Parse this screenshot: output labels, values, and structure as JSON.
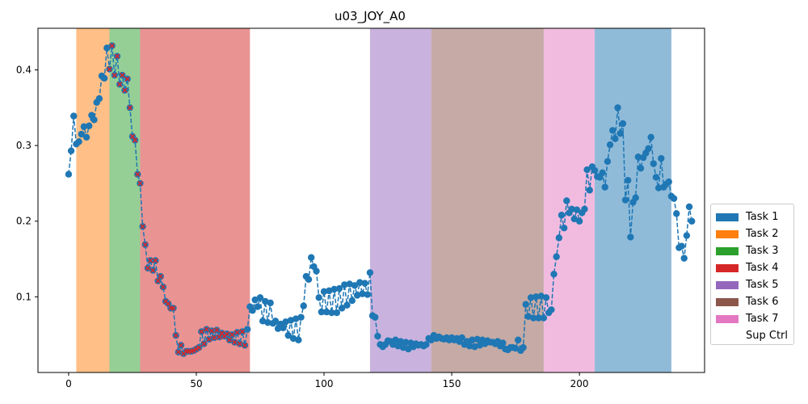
{
  "chart_data": {
    "type": "line",
    "title": "u03_JOY_A0",
    "xlabel": "",
    "ylabel": "",
    "xlim": [
      -12,
      249
    ],
    "ylim": [
      0.0,
      0.455
    ],
    "x_ticks": [
      0,
      50,
      100,
      150,
      200
    ],
    "y_ticks": [
      0.1,
      0.2,
      0.3,
      0.4
    ],
    "x_tick_labels": [
      "0",
      "50",
      "100",
      "150",
      "200"
    ],
    "y_tick_labels": [
      "0.1",
      "0.2",
      "0.3",
      "0.4"
    ],
    "grid": false,
    "legend_position": "outside right, lower",
    "line_style": "dashed with circle markers",
    "line_color": "#1f77b4",
    "task_spans": [
      {
        "task": "Task 2",
        "start": 3,
        "end": 16,
        "color": "#ff7f0e"
      },
      {
        "task": "Task 3",
        "start": 16,
        "end": 28,
        "color": "#2ca02c"
      },
      {
        "task": "Task 4",
        "start": 28,
        "end": 71,
        "color": "#d62728"
      },
      {
        "task": "Task 5",
        "start": 118,
        "end": 142,
        "color": "#9467bd"
      },
      {
        "task": "Task 6",
        "start": 142,
        "end": 186,
        "color": "#8c564b"
      },
      {
        "task": "Task 7",
        "start": 186,
        "end": 206,
        "color": "#e377c2"
      },
      {
        "task": "Task 1",
        "start": 206,
        "end": 236,
        "color": "#1f77b4"
      }
    ],
    "series": [
      {
        "values": [
          0.262,
          0.293,
          0.339,
          0.302,
          0.305,
          0.315,
          0.325,
          0.311,
          0.326,
          0.34,
          0.334,
          0.357,
          0.362,
          0.392,
          0.389,
          0.429,
          0.401,
          0.432,
          0.393,
          0.418,
          0.381,
          0.393,
          0.373,
          0.388,
          0.35,
          0.312,
          0.307,
          0.262,
          0.25,
          0.193,
          0.169,
          0.138,
          0.148,
          0.135,
          0.148,
          0.121,
          0.127,
          0.113,
          0.094,
          0.091,
          0.085,
          0.085,
          0.049,
          0.027,
          0.036,
          0.025,
          0.028,
          0.028,
          0.028,
          0.029,
          0.031,
          0.033,
          0.054,
          0.038,
          0.057,
          0.044,
          0.055,
          0.046,
          0.056,
          0.047,
          0.052,
          0.048,
          0.051,
          0.043,
          0.05,
          0.04,
          0.053,
          0.038,
          0.054,
          0.036,
          0.057,
          0.087,
          0.082,
          0.096,
          0.087,
          0.099,
          0.068,
          0.094,
          0.066,
          0.092,
          0.065,
          0.068,
          0.058,
          0.064,
          0.059,
          0.067,
          0.049,
          0.069,
          0.045,
          0.071,
          0.043,
          0.073,
          0.088,
          0.127,
          0.123,
          0.152,
          0.14,
          0.134,
          0.099,
          0.08,
          0.107,
          0.08,
          0.108,
          0.079,
          0.11,
          0.079,
          0.111,
          0.085,
          0.116,
          0.089,
          0.117,
          0.095,
          0.115,
          0.102,
          0.119,
          0.104,
          0.118,
          0.103,
          0.132,
          0.075,
          0.073,
          0.048,
          0.037,
          0.034,
          0.037,
          0.042,
          0.041,
          0.037,
          0.043,
          0.035,
          0.041,
          0.033,
          0.04,
          0.031,
          0.039,
          0.034,
          0.038,
          0.036,
          0.037,
          0.035,
          0.037,
          0.045,
          0.043,
          0.049,
          0.045,
          0.047,
          0.045,
          0.044,
          0.046,
          0.043,
          0.046,
          0.043,
          0.045,
          0.041,
          0.046,
          0.037,
          0.041,
          0.035,
          0.043,
          0.034,
          0.044,
          0.036,
          0.043,
          0.038,
          0.042,
          0.04,
          0.04,
          0.038,
          0.041,
          0.035,
          0.039,
          0.031,
          0.03,
          0.033,
          0.033,
          0.032,
          0.043,
          0.029,
          0.033,
          0.09,
          0.074,
          0.099,
          0.072,
          0.1,
          0.072,
          0.101,
          0.072,
          0.099,
          0.079,
          0.083,
          0.13,
          0.153,
          0.178,
          0.208,
          0.191,
          0.227,
          0.211,
          0.216,
          0.203,
          0.215,
          0.2,
          0.211,
          0.216,
          0.268,
          0.241,
          0.272,
          0.267,
          0.259,
          0.258,
          0.264,
          0.245,
          0.279,
          0.301,
          0.32,
          0.309,
          0.35,
          0.316,
          0.329,
          0.228,
          0.254,
          0.179,
          0.225,
          0.231,
          0.285,
          0.27,
          0.284,
          0.29,
          0.296,
          0.311,
          0.276,
          0.258,
          0.244,
          0.283,
          0.245,
          0.249,
          0.252,
          0.233,
          0.23,
          0.21,
          0.165,
          0.167,
          0.151,
          0.181,
          0.219,
          0.2
        ],
        "marked_indices": [
          16,
          17,
          18,
          19,
          20,
          21,
          22,
          23,
          24,
          25,
          26,
          27,
          28,
          29,
          30,
          31,
          32,
          33,
          34,
          35,
          36,
          37,
          38,
          39,
          40,
          41,
          42,
          43,
          44,
          45,
          46,
          47,
          48,
          49,
          50,
          51,
          52,
          53,
          54,
          55,
          56,
          57,
          58,
          59,
          60,
          61,
          62,
          63,
          64,
          65,
          66,
          67,
          68,
          69
        ]
      }
    ]
  },
  "legend": {
    "items": [
      {
        "label": "Task 1",
        "color": "#1f77b4"
      },
      {
        "label": "Task 2",
        "color": "#ff7f0e"
      },
      {
        "label": "Task 3",
        "color": "#2ca02c"
      },
      {
        "label": "Task 4",
        "color": "#d62728"
      },
      {
        "label": "Task 5",
        "color": "#9467bd"
      },
      {
        "label": "Task 6",
        "color": "#8c564b"
      },
      {
        "label": "Task 7",
        "color": "#e377c2"
      },
      {
        "label": "Sup Ctrl",
        "color": "#ffffff"
      }
    ]
  }
}
